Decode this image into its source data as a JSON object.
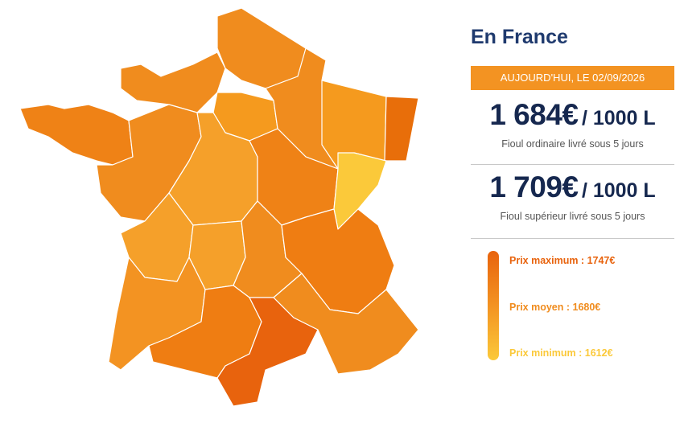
{
  "panel": {
    "title": "En France",
    "date": "AUJOURD'HUI, LE 02/09/2026",
    "offers": [
      {
        "price": "1 684€",
        "unit": "/ 1000 L",
        "description": "Fioul ordinaire livré sous 5 jours"
      },
      {
        "price": "1 709€",
        "unit": "/ 1000 L",
        "description": "Fioul supérieur livré sous 5 jours"
      }
    ],
    "legend": [
      "Prix maximum : 1747€",
      "Prix moyen : 1680€",
      "Prix minimum : 1612€"
    ]
  }
}
